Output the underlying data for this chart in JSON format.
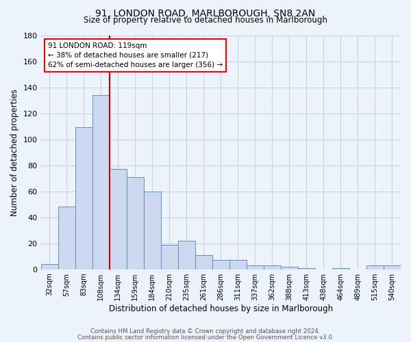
{
  "title": "91, LONDON ROAD, MARLBOROUGH, SN8 2AN",
  "subtitle": "Size of property relative to detached houses in Marlborough",
  "xlabel": "Distribution of detached houses by size in Marlborough",
  "ylabel": "Number of detached properties",
  "bar_labels": [
    "32sqm",
    "57sqm",
    "83sqm",
    "108sqm",
    "134sqm",
    "159sqm",
    "184sqm",
    "210sqm",
    "235sqm",
    "261sqm",
    "286sqm",
    "311sqm",
    "337sqm",
    "362sqm",
    "388sqm",
    "413sqm",
    "438sqm",
    "464sqm",
    "489sqm",
    "515sqm",
    "540sqm"
  ],
  "bar_values": [
    4,
    48,
    109,
    134,
    77,
    71,
    60,
    19,
    22,
    11,
    7,
    7,
    3,
    3,
    2,
    1,
    0,
    1,
    0,
    3,
    3
  ],
  "bar_color": "#ccd9ee",
  "bar_edge_color": "#6090c0",
  "grid_color": "#c0d0e0",
  "background_color": "#edf3fa",
  "vline_color": "#cc0000",
  "annotation_text": "91 LONDON ROAD: 119sqm\n← 38% of detached houses are smaller (217)\n62% of semi-detached houses are larger (356) →",
  "annotation_box_color": "white",
  "annotation_box_edge": "red",
  "ylim": [
    0,
    180
  ],
  "yticks": [
    0,
    20,
    40,
    60,
    80,
    100,
    120,
    140,
    160,
    180
  ],
  "footer1": "Contains HM Land Registry data © Crown copyright and database right 2024.",
  "footer2": "Contains public sector information licensed under the Open Government Licence v3.0."
}
